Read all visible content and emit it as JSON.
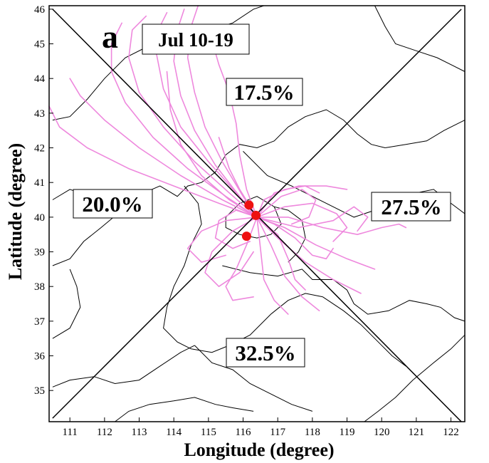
{
  "panel": {
    "letter": "a",
    "period": "Jul 10-19"
  },
  "axes": {
    "xlabel": "Longitude (degree)",
    "ylabel": "Latitude (degree)",
    "xlim": [
      110.4,
      122.4
    ],
    "ylim": [
      34.1,
      46.1
    ],
    "xticks": [
      111,
      112,
      113,
      114,
      115,
      116,
      117,
      118,
      119,
      120,
      121,
      122
    ],
    "yticks": [
      35,
      36,
      37,
      38,
      39,
      40,
      41,
      42,
      43,
      44,
      45,
      46
    ]
  },
  "sectors": [
    {
      "name": "north",
      "percent": "17.5%",
      "lon": 117.4,
      "lat": 43.3
    },
    {
      "name": "east",
      "percent": "27.5%",
      "lon": 121.1,
      "lat": 40.2
    },
    {
      "name": "south",
      "percent": "32.5%",
      "lon": 117.3,
      "lat": 36.1
    },
    {
      "name": "west",
      "percent": "20.0%",
      "lon": 113.1,
      "lat": 40.3
    }
  ],
  "colors": {
    "trajectory": "#ee88dd",
    "site": "#ee1111",
    "boundary": "#000000",
    "divider": "#000000"
  },
  "sites": [
    {
      "lon": 116.17,
      "lat": 40.35
    },
    {
      "lon": 116.37,
      "lat": 40.05
    },
    {
      "lon": 116.1,
      "lat": 39.45
    }
  ],
  "divider_lines": [
    [
      [
        110.5,
        46.0
      ],
      [
        122.3,
        34.1
      ]
    ],
    [
      [
        110.5,
        34.2
      ],
      [
        122.3,
        46.0
      ]
    ]
  ],
  "trajectories": [
    [
      [
        116.4,
        40.0
      ],
      [
        116.0,
        40.6
      ],
      [
        115.4,
        41.6
      ],
      [
        114.9,
        42.6
      ],
      [
        114.6,
        43.6
      ],
      [
        114.4,
        44.6
      ],
      [
        114.5,
        45.5
      ],
      [
        114.7,
        46.1
      ]
    ],
    [
      [
        116.4,
        40.0
      ],
      [
        115.9,
        40.6
      ],
      [
        115.2,
        41.5
      ],
      [
        114.6,
        42.5
      ],
      [
        114.2,
        43.5
      ],
      [
        114.0,
        44.5
      ],
      [
        114.1,
        45.4
      ],
      [
        114.3,
        46.0
      ]
    ],
    [
      [
        116.4,
        40.0
      ],
      [
        115.8,
        40.7
      ],
      [
        115.0,
        41.6
      ],
      [
        114.2,
        42.6
      ],
      [
        113.7,
        43.7
      ],
      [
        113.5,
        44.7
      ],
      [
        113.6,
        45.5
      ],
      [
        113.8,
        45.9
      ]
    ],
    [
      [
        116.4,
        40.0
      ],
      [
        115.6,
        40.7
      ],
      [
        114.6,
        41.6
      ],
      [
        113.7,
        42.6
      ],
      [
        113.0,
        43.6
      ],
      [
        112.7,
        44.6
      ],
      [
        112.8,
        45.4
      ],
      [
        113.2,
        45.8
      ]
    ],
    [
      [
        116.4,
        40.0
      ],
      [
        115.5,
        40.6
      ],
      [
        114.4,
        41.4
      ],
      [
        113.4,
        42.3
      ],
      [
        112.6,
        43.3
      ],
      [
        112.2,
        44.2
      ],
      [
        112.2,
        45.0
      ],
      [
        112.5,
        45.6
      ]
    ],
    [
      [
        116.4,
        40.0
      ],
      [
        115.4,
        40.5
      ],
      [
        114.2,
        41.2
      ],
      [
        113.0,
        42.0
      ],
      [
        112.0,
        42.8
      ],
      [
        111.3,
        43.5
      ],
      [
        111.0,
        44.0
      ]
    ],
    [
      [
        116.4,
        40.0
      ],
      [
        115.3,
        40.4
      ],
      [
        114.0,
        40.9
      ],
      [
        112.7,
        41.4
      ],
      [
        111.5,
        42.0
      ],
      [
        110.7,
        42.6
      ],
      [
        110.4,
        43.2
      ]
    ],
    [
      [
        116.4,
        40.0
      ],
      [
        115.6,
        40.5
      ],
      [
        114.8,
        41.2
      ],
      [
        114.2,
        42.1
      ],
      [
        113.9,
        43.1
      ],
      [
        113.8,
        44.2
      ]
    ],
    [
      [
        116.4,
        40.0
      ],
      [
        116.1,
        40.8
      ],
      [
        115.9,
        41.8
      ],
      [
        115.8,
        42.7
      ],
      [
        115.6,
        43.6
      ],
      [
        115.3,
        44.4
      ],
      [
        115.1,
        45.1
      ]
    ],
    [
      [
        116.4,
        40.0
      ],
      [
        116.9,
        40.7
      ],
      [
        117.6,
        40.9
      ],
      [
        118.4,
        40.9
      ],
      [
        119.0,
        40.8
      ]
    ],
    [
      [
        116.4,
        40.0
      ],
      [
        117.2,
        40.3
      ],
      [
        118.0,
        40.4
      ],
      [
        118.7,
        40.1
      ],
      [
        119.0,
        39.7
      ],
      [
        118.6,
        39.3
      ]
    ],
    [
      [
        116.4,
        40.0
      ],
      [
        117.3,
        40.0
      ],
      [
        118.3,
        39.7
      ],
      [
        119.3,
        39.5
      ],
      [
        120.0,
        39.7
      ],
      [
        120.5,
        39.8
      ],
      [
        120.7,
        39.7
      ]
    ],
    [
      [
        116.4,
        40.0
      ],
      [
        117.2,
        39.7
      ],
      [
        118.1,
        39.2
      ],
      [
        119.0,
        38.8
      ],
      [
        119.8,
        38.5
      ]
    ],
    [
      [
        116.4,
        40.0
      ],
      [
        117.0,
        39.4
      ],
      [
        117.8,
        38.7
      ],
      [
        118.6,
        38.2
      ],
      [
        119.4,
        37.8
      ]
    ],
    [
      [
        116.4,
        40.0
      ],
      [
        116.8,
        39.2
      ],
      [
        117.2,
        38.3
      ],
      [
        117.7,
        37.7
      ],
      [
        118.2,
        37.3
      ]
    ],
    [
      [
        116.4,
        40.0
      ],
      [
        116.5,
        39.1
      ],
      [
        116.6,
        38.2
      ],
      [
        116.9,
        37.6
      ],
      [
        117.3,
        37.2
      ]
    ],
    [
      [
        116.4,
        40.0
      ],
      [
        116.1,
        39.2
      ],
      [
        115.8,
        38.5
      ],
      [
        115.5,
        38.0
      ],
      [
        115.7,
        37.6
      ],
      [
        116.3,
        37.7
      ]
    ],
    [
      [
        116.4,
        40.0
      ],
      [
        115.7,
        39.6
      ],
      [
        115.1,
        39.0
      ],
      [
        114.9,
        38.4
      ],
      [
        115.3,
        38.0
      ],
      [
        115.9,
        38.4
      ],
      [
        116.3,
        39.0
      ]
    ],
    [
      [
        116.4,
        40.0
      ],
      [
        115.5,
        39.9
      ],
      [
        114.8,
        39.6
      ],
      [
        114.4,
        39.1
      ],
      [
        114.8,
        38.7
      ],
      [
        115.5,
        38.9
      ]
    ],
    [
      [
        116.4,
        40.0
      ],
      [
        115.8,
        40.2
      ],
      [
        115.3,
        39.9
      ],
      [
        115.2,
        39.4
      ],
      [
        115.7,
        39.1
      ],
      [
        116.2,
        39.3
      ]
    ],
    [
      [
        116.4,
        40.0
      ],
      [
        117.1,
        40.6
      ],
      [
        117.7,
        40.8
      ],
      [
        118.1,
        40.5
      ],
      [
        117.9,
        40.0
      ],
      [
        117.4,
        39.8
      ]
    ],
    [
      [
        116.4,
        40.0
      ],
      [
        116.9,
        39.8
      ],
      [
        117.5,
        39.4
      ],
      [
        118.0,
        38.9
      ],
      [
        118.4,
        38.8
      ],
      [
        118.6,
        39.1
      ]
    ],
    [
      [
        116.4,
        40.0
      ],
      [
        117.0,
        39.5
      ],
      [
        117.3,
        38.8
      ],
      [
        117.5,
        38.2
      ],
      [
        117.8,
        37.9
      ]
    ],
    [
      [
        116.4,
        40.0
      ],
      [
        116.6,
        40.5
      ],
      [
        117.2,
        40.8
      ],
      [
        117.8,
        40.9
      ],
      [
        118.2,
        40.7
      ]
    ],
    [
      [
        116.4,
        40.0
      ],
      [
        115.9,
        40.8
      ],
      [
        115.6,
        41.4
      ],
      [
        115.3,
        42.3
      ]
    ],
    [
      [
        116.4,
        40.0
      ],
      [
        117.6,
        39.7
      ],
      [
        118.6,
        39.9
      ],
      [
        119.2,
        40.3
      ],
      [
        119.6,
        40.0
      ],
      [
        119.3,
        39.6
      ]
    ]
  ],
  "boundaries": [
    [
      [
        110.5,
        42.8
      ],
      [
        111.0,
        42.9
      ],
      [
        111.5,
        43.4
      ],
      [
        112.0,
        44.0
      ],
      [
        112.6,
        44.6
      ],
      [
        113.2,
        44.9
      ],
      [
        113.8,
        45.1
      ],
      [
        114.4,
        45.2
      ],
      [
        115.0,
        45.4
      ],
      [
        115.7,
        45.6
      ],
      [
        116.3,
        46.0
      ],
      [
        116.6,
        46.1
      ]
    ],
    [
      [
        119.8,
        46.1
      ],
      [
        120.1,
        45.5
      ],
      [
        120.4,
        45.0
      ],
      [
        121.0,
        44.8
      ],
      [
        121.6,
        44.6
      ],
      [
        122.4,
        44.2
      ]
    ],
    [
      [
        110.5,
        40.5
      ],
      [
        111.0,
        40.8
      ],
      [
        111.6,
        40.6
      ],
      [
        112.2,
        40.7
      ],
      [
        112.9,
        40.6
      ],
      [
        113.6,
        40.9
      ],
      [
        114.1,
        40.6
      ],
      [
        114.4,
        40.9
      ],
      [
        114.8,
        41.0
      ],
      [
        115.2,
        41.3
      ],
      [
        115.5,
        41.8
      ],
      [
        115.9,
        42.1
      ],
      [
        116.4,
        42.0
      ],
      [
        116.9,
        42.2
      ],
      [
        117.3,
        42.6
      ],
      [
        117.8,
        42.9
      ],
      [
        118.4,
        43.1
      ],
      [
        118.9,
        42.8
      ],
      [
        119.3,
        42.4
      ],
      [
        119.7,
        42.1
      ],
      [
        120.1,
        42.0
      ]
    ],
    [
      [
        120.1,
        42.0
      ],
      [
        120.7,
        42.1
      ],
      [
        121.3,
        42.2
      ],
      [
        121.8,
        42.5
      ],
      [
        122.4,
        42.8
      ]
    ],
    [
      [
        116.0,
        41.9
      ],
      [
        116.7,
        41.2
      ],
      [
        117.4,
        40.9
      ],
      [
        118.0,
        40.6
      ],
      [
        118.6,
        40.3
      ],
      [
        119.2,
        40.0
      ],
      [
        119.8,
        40.2
      ],
      [
        120.4,
        40.5
      ],
      [
        121.0,
        40.7
      ],
      [
        121.5,
        40.8
      ],
      [
        122.0,
        40.4
      ],
      [
        122.4,
        40.1
      ]
    ],
    [
      [
        114.3,
        40.9
      ],
      [
        114.7,
        40.4
      ],
      [
        114.8,
        39.8
      ],
      [
        114.5,
        39.2
      ],
      [
        114.3,
        38.6
      ],
      [
        114.0,
        38.0
      ],
      [
        113.8,
        37.4
      ],
      [
        113.7,
        36.8
      ],
      [
        114.1,
        36.4
      ],
      [
        114.5,
        36.2
      ]
    ],
    [
      [
        110.5,
        38.6
      ],
      [
        111.0,
        38.8
      ],
      [
        111.4,
        39.3
      ],
      [
        111.9,
        39.7
      ],
      [
        112.5,
        40.2
      ],
      [
        113.0,
        40.5
      ]
    ],
    [
      [
        110.5,
        36.5
      ],
      [
        111.0,
        36.8
      ],
      [
        111.3,
        37.4
      ],
      [
        111.2,
        38.0
      ],
      [
        111.0,
        38.5
      ]
    ],
    [
      [
        110.5,
        35.1
      ],
      [
        111.0,
        35.3
      ],
      [
        111.7,
        35.4
      ],
      [
        112.3,
        35.2
      ],
      [
        113.0,
        35.3
      ],
      [
        113.6,
        35.7
      ],
      [
        114.2,
        36.1
      ],
      [
        114.6,
        36.3
      ]
    ],
    [
      [
        115.5,
        40.0
      ],
      [
        115.9,
        40.4
      ],
      [
        116.4,
        40.6
      ],
      [
        116.9,
        40.3
      ],
      [
        117.1,
        39.8
      ],
      [
        116.8,
        39.5
      ],
      [
        116.4,
        39.4
      ],
      [
        115.9,
        39.5
      ],
      [
        115.5,
        39.7
      ],
      [
        115.5,
        40.0
      ]
    ],
    [
      [
        116.9,
        40.3
      ],
      [
        117.3,
        40.2
      ],
      [
        117.7,
        39.9
      ],
      [
        117.8,
        39.4
      ],
      [
        117.6,
        39.0
      ],
      [
        117.3,
        38.7
      ]
    ],
    [
      [
        115.4,
        38.6
      ],
      [
        116.2,
        38.4
      ],
      [
        117.0,
        38.3
      ],
      [
        117.7,
        38.5
      ],
      [
        118.0,
        38.2
      ],
      [
        118.6,
        38.2
      ],
      [
        119.0,
        37.9
      ],
      [
        119.2,
        37.5
      ],
      [
        119.6,
        37.2
      ],
      [
        120.2,
        37.3
      ],
      [
        120.8,
        37.6
      ],
      [
        121.3,
        37.5
      ],
      [
        121.7,
        37.4
      ],
      [
        122.1,
        37.1
      ],
      [
        122.4,
        37.0
      ]
    ],
    [
      [
        114.5,
        36.2
      ],
      [
        115.1,
        36.1
      ],
      [
        115.6,
        36.3
      ],
      [
        116.2,
        36.6
      ],
      [
        116.8,
        37.2
      ],
      [
        117.3,
        37.6
      ],
      [
        117.8,
        37.8
      ],
      [
        118.3,
        37.7
      ]
    ],
    [
      [
        114.6,
        36.3
      ],
      [
        115.1,
        35.8
      ],
      [
        115.7,
        35.6
      ],
      [
        116.2,
        35.2
      ],
      [
        116.8,
        34.9
      ],
      [
        117.4,
        34.6
      ],
      [
        118.0,
        34.4
      ]
    ],
    [
      [
        118.3,
        37.7
      ],
      [
        118.9,
        37.3
      ],
      [
        119.4,
        36.9
      ],
      [
        119.8,
        36.5
      ],
      [
        120.3,
        36.0
      ],
      [
        120.7,
        35.7
      ]
    ],
    [
      [
        112.3,
        34.1
      ],
      [
        112.7,
        34.4
      ],
      [
        113.3,
        34.6
      ],
      [
        114.0,
        34.7
      ],
      [
        114.6,
        34.8
      ],
      [
        115.2,
        34.6
      ],
      [
        115.7,
        34.5
      ],
      [
        116.3,
        34.4
      ]
    ],
    [
      [
        119.5,
        34.1
      ],
      [
        119.9,
        34.4
      ],
      [
        120.4,
        34.8
      ],
      [
        120.9,
        35.3
      ],
      [
        121.5,
        35.8
      ],
      [
        122.0,
        36.2
      ],
      [
        122.4,
        36.6
      ]
    ]
  ]
}
